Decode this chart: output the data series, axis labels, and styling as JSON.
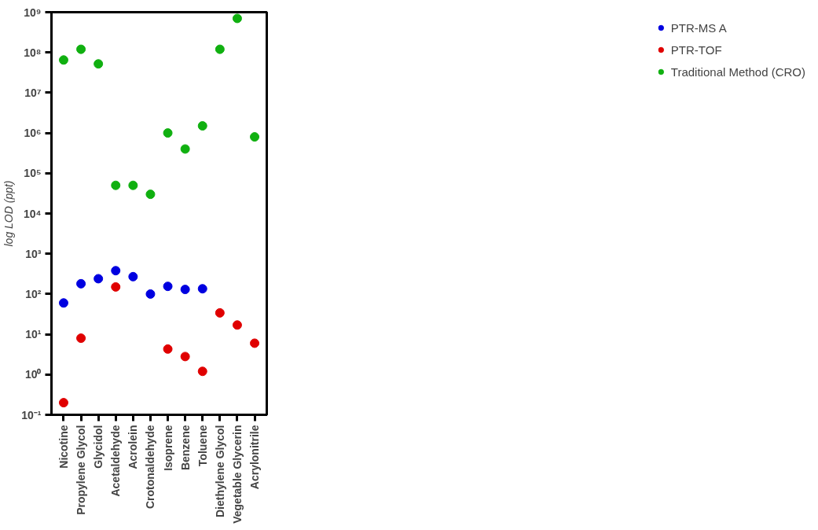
{
  "chart_data": {
    "type": "scatter",
    "ylabel": "log LOD (ppt)",
    "categories": [
      "Nicotine",
      "Propylene Glycol",
      "Glycidol",
      "Acetaldehyde",
      "Acrolein",
      "Crotonaldehyde",
      "Isoprene",
      "Benzene",
      "Toluene",
      "Diethylene Glycol",
      "Vegetable Glycerin",
      "Acrylonitrile"
    ],
    "series": [
      {
        "name": "PTR-MS A",
        "color": "#0000e0",
        "values": [
          60,
          180,
          240,
          380,
          270,
          100,
          155,
          130,
          135,
          null,
          null,
          null
        ]
      },
      {
        "name": "PTR-TOF",
        "color": "#e00000",
        "values": [
          0.2,
          8,
          null,
          150,
          null,
          null,
          4.3,
          2.8,
          1.2,
          34,
          17,
          6
        ]
      },
      {
        "name": "Traditional Method (CRO)",
        "color": "#10b010",
        "values": [
          65000000,
          120000000,
          52000000,
          50000,
          50000,
          30000,
          1000000,
          400000,
          1500000,
          120000000,
          700000000,
          800000
        ]
      }
    ],
    "log": "y",
    "ylim": [
      0.1,
      1000000000
    ],
    "yticks": [
      {
        "value": 0.1,
        "label": "10⁻¹"
      },
      {
        "value": 1,
        "label": "10⁰"
      },
      {
        "value": 10,
        "label": "10¹"
      },
      {
        "value": 100,
        "label": "10²"
      },
      {
        "value": 1000,
        "label": "10³"
      },
      {
        "value": 10000,
        "label": "10⁴"
      },
      {
        "value": 100000,
        "label": "10⁵"
      },
      {
        "value": 1000000,
        "label": "10⁶"
      },
      {
        "value": 10000000,
        "label": "10⁷"
      },
      {
        "value": 100000000,
        "label": "10⁸"
      },
      {
        "value": 1000000000,
        "label": "10⁹"
      }
    ],
    "marker": "circle",
    "grid": false,
    "legend": "top right"
  }
}
